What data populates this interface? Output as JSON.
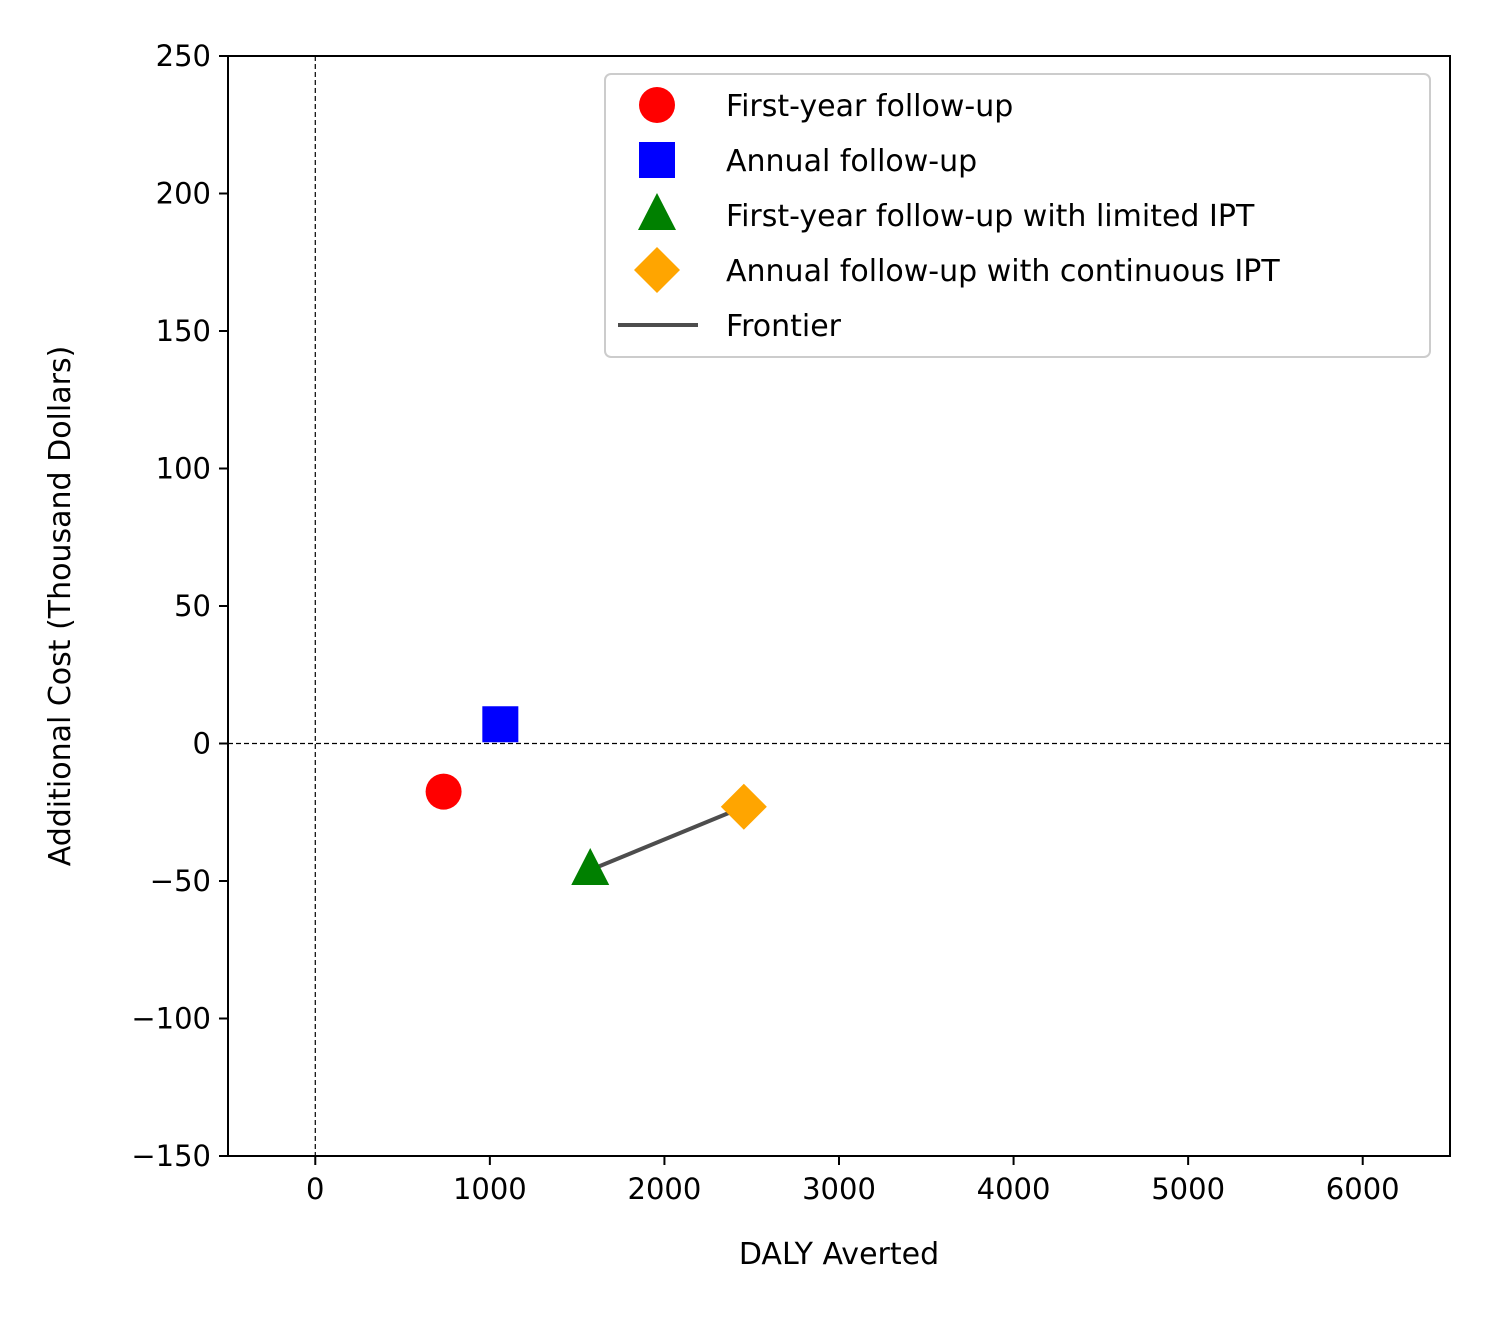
{
  "chart_data": {
    "type": "scatter",
    "xlabel": "DALY Averted",
    "ylabel": "Additional Cost (Thousand Dollars)",
    "xlim": [
      -500,
      6500
    ],
    "ylim": [
      -150,
      250
    ],
    "xticks": [
      0,
      1000,
      2000,
      3000,
      4000,
      5000,
      6000
    ],
    "yticks": [
      -150,
      -100,
      -50,
      0,
      50,
      100,
      150,
      200,
      250
    ],
    "xtick_labels": [
      "0",
      "1000",
      "2000",
      "3000",
      "4000",
      "5000",
      "6000"
    ],
    "ytick_labels": [
      "−150",
      "−100",
      "−50",
      "0",
      "50",
      "100",
      "150",
      "200",
      "250"
    ],
    "grid": false,
    "reference_lines": {
      "x": 0,
      "y": 0,
      "style": "dashed"
    },
    "legend_position": "top-right",
    "series": [
      {
        "name": "First-year follow-up",
        "marker": "circle",
        "color": "#ff0000",
        "x": [
          735
        ],
        "y": [
          -17.5
        ]
      },
      {
        "name": "Annual follow-up",
        "marker": "square",
        "color": "#0000ff",
        "x": [
          1060
        ],
        "y": [
          7
        ]
      },
      {
        "name": "First-year follow-up with limited IPT",
        "marker": "triangle",
        "color": "#008000",
        "x": [
          1575
        ],
        "y": [
          -46
        ]
      },
      {
        "name": "Annual follow-up with continuous IPT",
        "marker": "diamond",
        "color": "#ffa500",
        "x": [
          2455
        ],
        "y": [
          -23
        ]
      }
    ],
    "frontier": {
      "name": "Frontier",
      "color": "#4d4d4d",
      "x": [
        1575,
        2455
      ],
      "y": [
        -46,
        -23
      ]
    }
  }
}
